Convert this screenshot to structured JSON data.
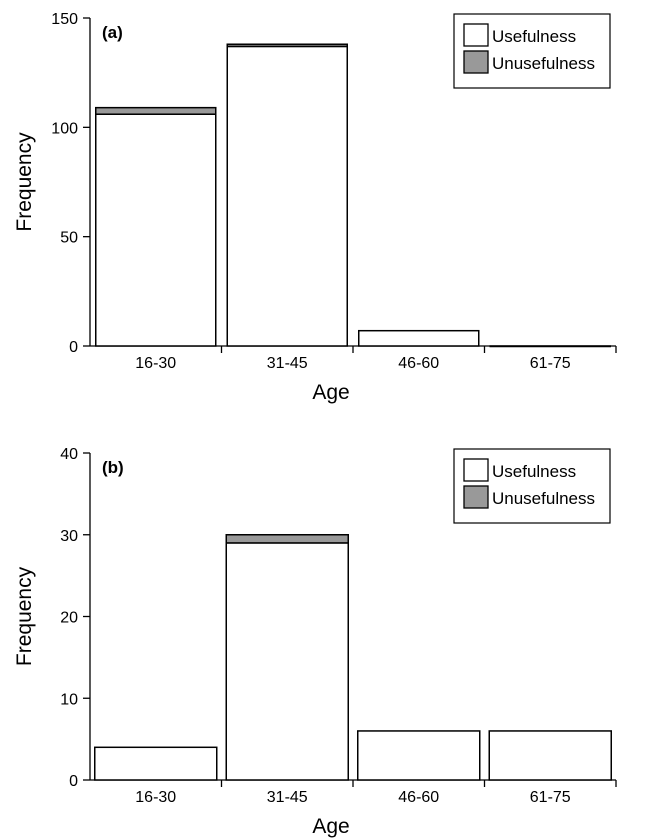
{
  "chart_data": [
    {
      "type": "bar",
      "stacked": true,
      "panel_label": "(a)",
      "categories": [
        "16-30",
        "31-45",
        "46-60",
        "61-75"
      ],
      "series": [
        {
          "name": "Usefulness",
          "color": "#ffffff",
          "values": [
            106,
            137,
            7,
            0
          ]
        },
        {
          "name": "Unusefulness",
          "color": "#999999",
          "values": [
            3,
            1,
            0,
            0
          ]
        }
      ],
      "xlabel": "Age",
      "ylabel": "Frequency",
      "ylim": [
        0,
        150
      ],
      "yticks": [
        0,
        50,
        100,
        150
      ],
      "legend": "top-right",
      "grid": false
    },
    {
      "type": "bar",
      "stacked": true,
      "panel_label": "(b)",
      "categories": [
        "16-30",
        "31-45",
        "46-60",
        "61-75"
      ],
      "series": [
        {
          "name": "Usefulness",
          "color": "#ffffff",
          "values": [
            4,
            29,
            6,
            6
          ]
        },
        {
          "name": "Unusefulness",
          "color": "#999999",
          "values": [
            0,
            1,
            0,
            0
          ]
        }
      ],
      "xlabel": "Age",
      "ylabel": "Frequency",
      "ylim": [
        0,
        40
      ],
      "yticks": [
        0,
        10,
        20,
        30,
        40
      ],
      "legend": "top-right",
      "grid": false
    }
  ]
}
